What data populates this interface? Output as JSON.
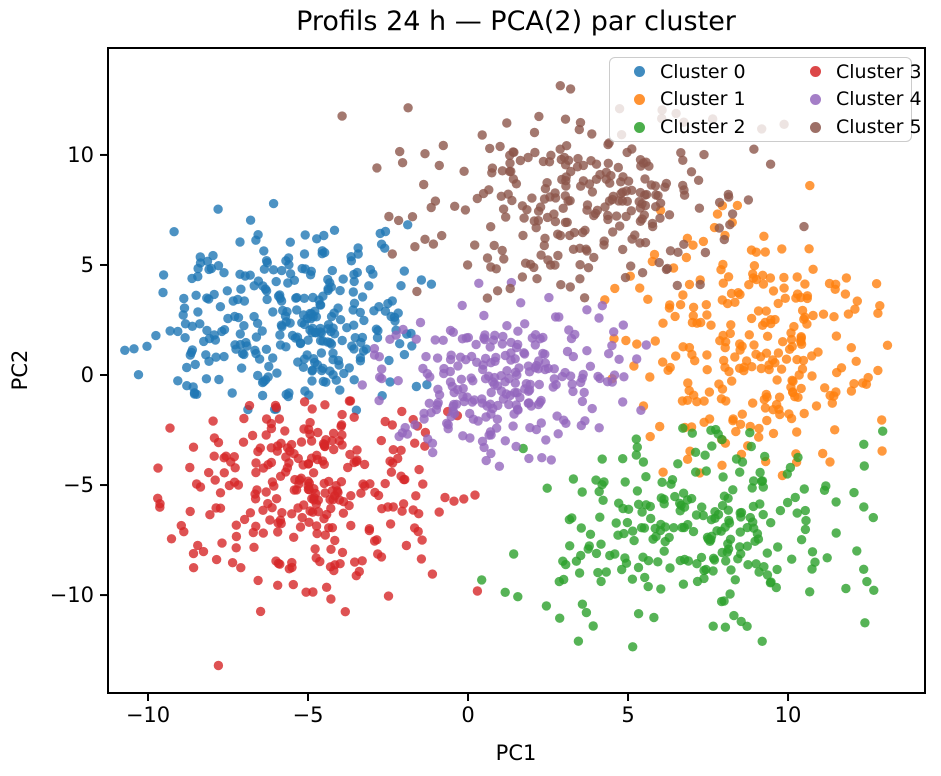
{
  "figure": {
    "title": "Profils 24 h — PCA(2) par cluster"
  },
  "axes": {
    "xlabel": "PC1",
    "ylabel": "PC2",
    "x_ticks": [
      -10,
      -5,
      0,
      5,
      10
    ],
    "y_ticks": [
      10,
      5,
      0,
      -5,
      -10
    ]
  },
  "legend": {
    "items": [
      {
        "label": "Cluster 0",
        "color": "#1f77b4"
      },
      {
        "label": "Cluster 1",
        "color": "#ff7f0e"
      },
      {
        "label": "Cluster 2",
        "color": "#2ca02c"
      },
      {
        "label": "Cluster 3",
        "color": "#d62728"
      },
      {
        "label": "Cluster 4",
        "color": "#9467bd"
      },
      {
        "label": "Cluster 5",
        "color": "#8c564b"
      }
    ]
  },
  "chart_data": {
    "type": "scatter",
    "title": "Profils 24 h — PCA(2) par cluster",
    "xlabel": "PC1",
    "ylabel": "PC2",
    "xlim": [
      -11.25,
      14.28
    ],
    "ylim": [
      -14.45,
      14.86
    ],
    "grid": false,
    "legend_position": "upper right, 2 columns",
    "marker_alpha": 0.8,
    "marker_radius_px": 4.7,
    "series": [
      {
        "name": "Cluster 0",
        "color": "#1f77b4",
        "n": 300,
        "center": [
          -5.4,
          2.5
        ],
        "std": [
          2.0,
          2.3
        ],
        "bounds": {
          "x": [
            -11.1,
            -0.8
          ],
          "y": [
            -1.6,
            10.5
          ]
        },
        "seed": 101,
        "extra_points": []
      },
      {
        "name": "Cluster 1",
        "color": "#ff7f0e",
        "n": 255,
        "center": [
          8.8,
          1.6
        ],
        "std": [
          2.1,
          2.9
        ],
        "bounds": {
          "x": [
            3.8,
            13.3
          ],
          "y": [
            -4.6,
            10.2
          ]
        },
        "seed": 202,
        "extra_points": []
      },
      {
        "name": "Cluster 2",
        "color": "#2ca02c",
        "n": 250,
        "center": [
          7.6,
          -7.1
        ],
        "std": [
          2.6,
          2.2
        ],
        "bounds": {
          "x": [
            0.3,
            13.2
          ],
          "y": [
            -12.4,
            -2.4
          ]
        },
        "seed": 303,
        "extra_points": []
      },
      {
        "name": "Cluster 3",
        "color": "#d62728",
        "n": 280,
        "center": [
          -4.9,
          -5.1
        ],
        "std": [
          2.2,
          2.5
        ],
        "bounds": {
          "x": [
            -10.5,
            0.3
          ],
          "y": [
            -12.0,
            -0.9
          ]
        },
        "seed": 404,
        "extra_points": [
          [
            -7.8,
            -13.2
          ]
        ]
      },
      {
        "name": "Cluster 4",
        "color": "#9467bd",
        "n": 245,
        "center": [
          1.0,
          -0.4
        ],
        "std": [
          2.0,
          1.9
        ],
        "bounds": {
          "x": [
            -3.6,
            6.0
          ],
          "y": [
            -4.7,
            4.2
          ]
        },
        "seed": 505,
        "extra_points": []
      },
      {
        "name": "Cluster 5",
        "color": "#8c564b",
        "n": 260,
        "center": [
          3.8,
          7.7
        ],
        "std": [
          2.8,
          2.1
        ],
        "bounds": {
          "x": [
            -4.9,
            11.2
          ],
          "y": [
            3.4,
            13.5
          ]
        },
        "seed": 606,
        "extra_points": []
      }
    ]
  }
}
